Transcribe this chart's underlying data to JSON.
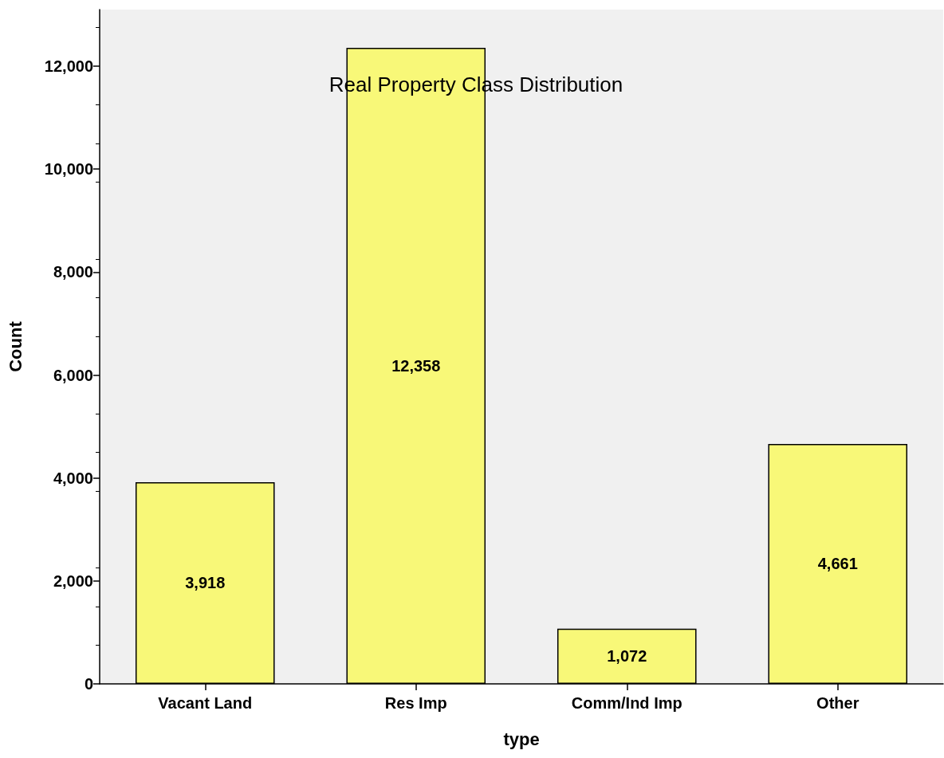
{
  "chart_data": {
    "type": "bar",
    "title": "Real Property Class Distribution",
    "xlabel": "type",
    "ylabel": "Count",
    "categories": [
      "Vacant Land",
      "Res Imp",
      "Comm/Ind Imp",
      "Other"
    ],
    "values": [
      3918,
      12358,
      1072,
      4661
    ],
    "value_labels": [
      "3,918",
      "12,358",
      "1,072",
      "4,661"
    ],
    "color": "#f8f878",
    "ylim": [
      0,
      13100
    ],
    "yticks": [
      0,
      {
        "value": 2000,
        "label": "2,000"
      },
      {
        "value": 4000,
        "label": "4,000"
      },
      {
        "value": 6000,
        "label": "6,000"
      },
      {
        "value": 8000,
        "label": "8,000"
      },
      {
        "value": 10000,
        "label": "10,000"
      },
      {
        "value": 12000,
        "label": "12,000"
      }
    ],
    "grid": false
  }
}
